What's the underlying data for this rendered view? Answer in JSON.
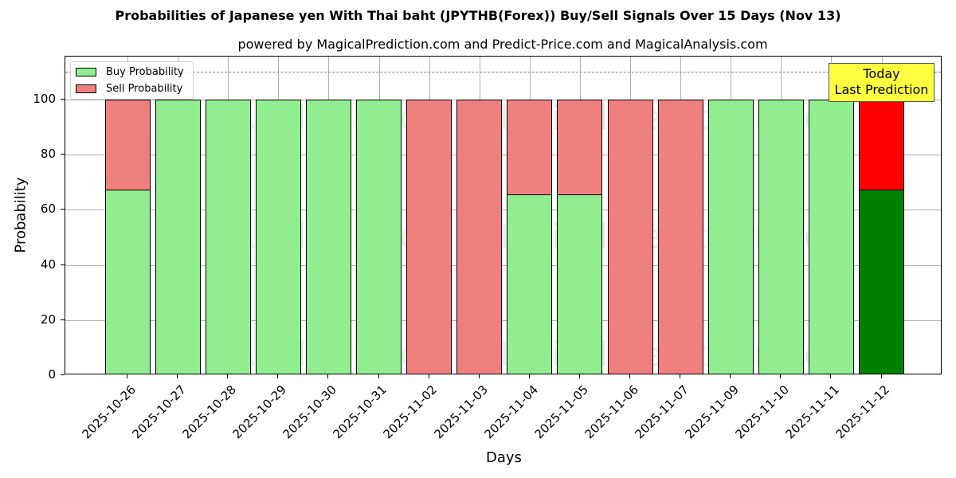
{
  "title": "Probabilities of Japanese yen With Thai baht (JPYTHB(Forex)) Buy/Sell Signals Over 15 Days (Nov 13)",
  "subtitle": "powered by MagicalPrediction.com and Predict-Price.com and MagicalAnalysis.com",
  "watermarks": [
    "MagicalAnalysis.com",
    "MagicalPrediction.com"
  ],
  "annotation": {
    "line1": "Today",
    "line2": "Last Prediction"
  },
  "colors": {
    "buy": "#90ee90",
    "sell": "#f08080",
    "buy_today": "#008000",
    "sell_today": "#ff0000",
    "annotation_bg": "#ffff40"
  },
  "chart_data": {
    "type": "bar",
    "stacked": true,
    "title": "Probabilities of Japanese yen With Thai baht (JPYTHB(Forex)) Buy/Sell Signals Over 15 Days (Nov 13)",
    "subtitle": "powered by MagicalPrediction.com and Predict-Price.com and MagicalAnalysis.com",
    "xlabel": "Days",
    "ylabel": "Probability",
    "ylim": [
      0,
      115
    ],
    "yticks": [
      0,
      20,
      40,
      60,
      80,
      100
    ],
    "grid": true,
    "reference_line": {
      "y": 110,
      "style": "dashed",
      "color": "#808080"
    },
    "legend": {
      "position": "upper left",
      "entries": [
        "Buy Probability",
        "Sell Probability"
      ]
    },
    "categories": [
      "2025-10-26",
      "2025-10-27",
      "2025-10-28",
      "2025-10-29",
      "2025-10-30",
      "2025-10-31",
      "2025-11-02",
      "2025-11-03",
      "2025-11-04",
      "2025-11-05",
      "2025-11-06",
      "2025-11-07",
      "2025-11-09",
      "2025-11-10",
      "2025-11-11",
      "2025-11-12"
    ],
    "series": [
      {
        "name": "Buy Probability",
        "values": [
          67.3,
          100,
          100,
          100,
          100,
          100,
          0,
          0,
          65.6,
          65.6,
          0,
          0,
          100,
          100,
          100,
          67.3
        ]
      },
      {
        "name": "Sell Probability",
        "values": [
          32.7,
          0,
          0,
          0,
          0,
          0,
          100,
          100,
          34.4,
          34.4,
          100,
          100,
          0,
          0,
          0,
          32.7
        ]
      }
    ],
    "annotations": [
      {
        "text": "Today\nLast Prediction",
        "x": "2025-11-12",
        "y": 105
      }
    ]
  }
}
